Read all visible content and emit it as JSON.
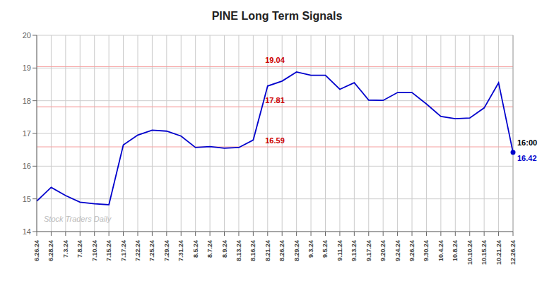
{
  "chart_data": {
    "type": "line",
    "title": "PINE Long Term Signals",
    "categories": [
      "6.26.24",
      "6.28.24",
      "7.3.24",
      "7.8.24",
      "7.10.24",
      "7.15.24",
      "7.17.24",
      "7.22.24",
      "7.25.24",
      "7.29.24",
      "7.31.24",
      "8.5.24",
      "8.7.24",
      "8.9.24",
      "8.13.24",
      "8.16.24",
      "8.21.24",
      "8.26.24",
      "8.29.24",
      "9.3.24",
      "9.5.24",
      "9.11.24",
      "9.13.24",
      "9.17.24",
      "9.20.24",
      "9.24.24",
      "9.26.24",
      "9.30.24",
      "10.4.24",
      "10.8.24",
      "10.10.24",
      "10.15.24",
      "10.21.24",
      "12.26.24"
    ],
    "values": [
      14.93,
      15.35,
      15.1,
      14.9,
      14.85,
      14.82,
      16.65,
      16.95,
      17.1,
      17.07,
      16.92,
      16.57,
      16.6,
      16.55,
      16.57,
      16.8,
      18.45,
      18.6,
      18.88,
      18.78,
      18.78,
      18.35,
      18.55,
      18.02,
      18.01,
      18.25,
      18.25,
      17.9,
      17.52,
      17.45,
      17.47,
      17.78,
      18.55,
      16.42
    ],
    "color": "#0000cc",
    "ylim": [
      14,
      20
    ],
    "yticks": [
      14,
      15,
      16,
      17,
      18,
      19,
      20
    ],
    "grid": true,
    "hlines": [
      {
        "y": 19.04,
        "label": "19.04",
        "color": "#f5a0a0",
        "label_color": "#cc0000"
      },
      {
        "y": 17.81,
        "label": "17.81",
        "color": "#f5a0a0",
        "label_color": "#cc0000"
      },
      {
        "y": 16.59,
        "label": "16.59",
        "color": "#f5a0a0",
        "label_color": "#cc0000"
      }
    ],
    "annotations": [
      {
        "text": "16:00",
        "color": "#000000"
      },
      {
        "text": "16.42",
        "color": "#0000cc"
      }
    ],
    "watermark": "Stock Traders Daily",
    "watermark_color": "#bbbbbb"
  }
}
